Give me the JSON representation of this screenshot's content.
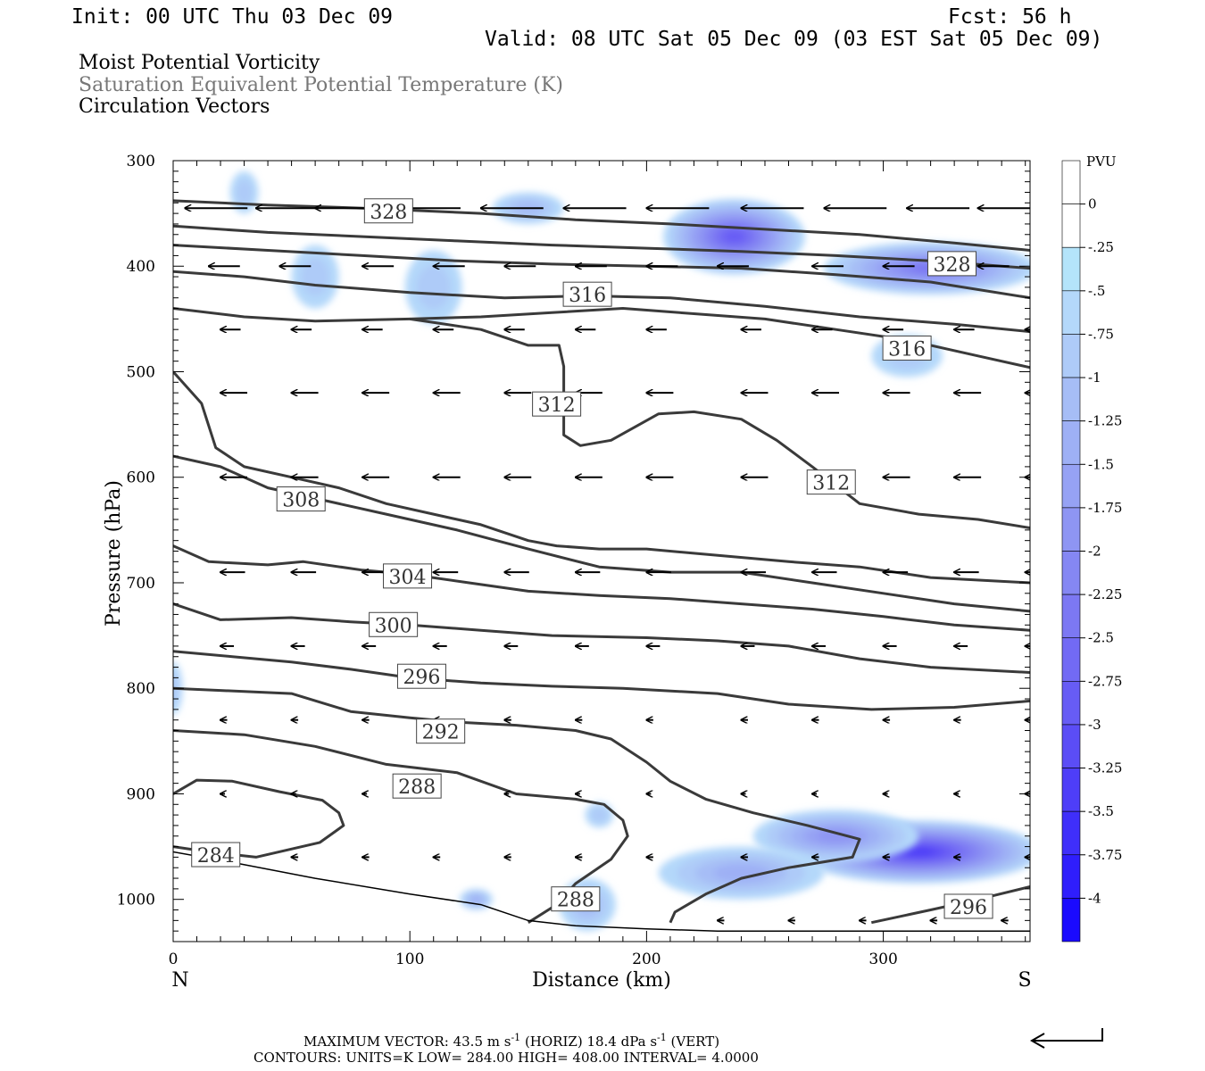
{
  "header": {
    "init": "Init: 00 UTC Thu 03 Dec 09",
    "fcst": "Fcst:   56 h",
    "valid": "Valid: 08 UTC Sat 05 Dec 09 (03 EST Sat 05 Dec 09)"
  },
  "fields": {
    "mpv": "Moist Potential Vorticity",
    "thetaes": "Saturation Equivalent Potential Temperature (K)",
    "vectors": "Circulation Vectors"
  },
  "chart_data": {
    "type": "cross-section",
    "xlabel": "Distance (km)",
    "ylabel": "Pressure (hPa)",
    "xlim": [
      0,
      362
    ],
    "ylim": [
      1040,
      300
    ],
    "x_ticks": [
      0,
      100,
      200,
      300
    ],
    "y_ticks": [
      300,
      400,
      500,
      600,
      700,
      800,
      900,
      1000
    ],
    "x_end_labels": {
      "left": "N",
      "right": "S"
    },
    "colorbar": {
      "title": "PVU",
      "labels": [
        "0",
        "-.25",
        "-.5",
        "-.75",
        "-1",
        "-1.25",
        "-1.5",
        "-1.75",
        "-2",
        "-2.25",
        "-2.5",
        "-2.75",
        "-3",
        "-3.25",
        "-3.5",
        "-3.75",
        "-4"
      ],
      "colors": [
        "#ffffff",
        "#ffffff",
        "#b4e4fa",
        "#b4d8fa",
        "#aecbf8",
        "#a6bdf6",
        "#9eb0f5",
        "#96a2f4",
        "#8e95f3",
        "#8587f3",
        "#7c78f3",
        "#726af4",
        "#675cf5",
        "#5b4df6",
        "#4e3ef8",
        "#3f2ffa",
        "#2f1efc",
        "#1a0afe"
      ]
    },
    "theta_contours": [
      {
        "label": "284",
        "label_at": [
          18,
          958
        ],
        "points": [
          [
            0,
            900
          ],
          [
            10,
            887
          ],
          [
            25,
            888
          ],
          [
            45,
            898
          ],
          [
            63,
            906
          ],
          [
            70,
            918
          ],
          [
            72,
            930
          ],
          [
            62,
            946
          ],
          [
            35,
            960
          ],
          [
            15,
            955
          ],
          [
            0,
            950
          ]
        ]
      },
      {
        "label": "288",
        "label_at": [
          103,
          893
        ],
        "points": [
          [
            0,
            840
          ],
          [
            30,
            844
          ],
          [
            60,
            855
          ],
          [
            90,
            872
          ],
          [
            120,
            880
          ],
          [
            145,
            900
          ],
          [
            170,
            905
          ],
          [
            182,
            910
          ],
          [
            190,
            925
          ],
          [
            192,
            940
          ],
          [
            185,
            962
          ],
          [
            170,
            985
          ],
          [
            162,
            1005
          ],
          [
            150,
            1022
          ]
        ]
      },
      {
        "label": "288",
        "label_at": [
          170,
          1000
        ],
        "points": []
      },
      {
        "label": "292",
        "label_at": [
          113,
          841
        ],
        "points": [
          [
            0,
            800
          ],
          [
            20,
            802
          ],
          [
            50,
            805
          ],
          [
            75,
            822
          ],
          [
            100,
            828
          ],
          [
            120,
            832
          ],
          [
            145,
            835
          ],
          [
            170,
            840
          ],
          [
            185,
            848
          ],
          [
            200,
            870
          ],
          [
            210,
            888
          ],
          [
            225,
            905
          ],
          [
            245,
            918
          ],
          [
            268,
            930
          ],
          [
            290,
            943
          ],
          [
            287,
            960
          ],
          [
            260,
            970
          ],
          [
            240,
            980
          ],
          [
            225,
            995
          ],
          [
            212,
            1012
          ],
          [
            210,
            1022
          ]
        ]
      },
      {
        "label": "296",
        "label_at": [
          105,
          789
        ],
        "points": [
          [
            0,
            765
          ],
          [
            25,
            770
          ],
          [
            50,
            775
          ],
          [
            75,
            782
          ],
          [
            100,
            790
          ],
          [
            130,
            795
          ],
          [
            160,
            798
          ],
          [
            190,
            800
          ],
          [
            230,
            805
          ],
          [
            260,
            815
          ],
          [
            295,
            820
          ],
          [
            330,
            818
          ],
          [
            362,
            812
          ]
        ]
      },
      {
        "label": "296",
        "label_at": [
          336,
          1007
        ],
        "points": [
          [
            295,
            1022
          ],
          [
            320,
            1010
          ],
          [
            340,
            1000
          ],
          [
            362,
            988
          ]
        ]
      },
      {
        "label": "300",
        "label_at": [
          93,
          740
        ],
        "points": [
          [
            0,
            720
          ],
          [
            20,
            735
          ],
          [
            50,
            733
          ],
          [
            75,
            737
          ],
          [
            100,
            740
          ],
          [
            130,
            745
          ],
          [
            160,
            750
          ],
          [
            200,
            752
          ],
          [
            230,
            755
          ],
          [
            260,
            760
          ],
          [
            290,
            772
          ],
          [
            320,
            780
          ],
          [
            362,
            785
          ]
        ]
      },
      {
        "label": "304",
        "label_at": [
          99,
          694
        ],
        "points": [
          [
            0,
            665
          ],
          [
            15,
            680
          ],
          [
            40,
            683
          ],
          [
            55,
            680
          ],
          [
            80,
            688
          ],
          [
            100,
            692
          ],
          [
            125,
            700
          ],
          [
            150,
            708
          ],
          [
            180,
            712
          ],
          [
            210,
            715
          ],
          [
            240,
            720
          ],
          [
            270,
            725
          ],
          [
            300,
            732
          ],
          [
            330,
            740
          ],
          [
            362,
            745
          ]
        ]
      },
      {
        "label": "308",
        "label_at": [
          54,
          621
        ],
        "points": [
          [
            0,
            580
          ],
          [
            20,
            590
          ],
          [
            40,
            610
          ],
          [
            60,
            620
          ],
          [
            90,
            635
          ],
          [
            120,
            650
          ],
          [
            150,
            668
          ],
          [
            180,
            685
          ],
          [
            210,
            690
          ],
          [
            240,
            690
          ],
          [
            270,
            700
          ],
          [
            300,
            710
          ],
          [
            330,
            720
          ],
          [
            362,
            727
          ]
        ]
      },
      {
        "label": "312",
        "label_at": [
          162,
          531
        ],
        "points": [
          [
            0,
            500
          ],
          [
            12,
            530
          ],
          [
            18,
            572
          ],
          [
            30,
            590
          ],
          [
            50,
            600
          ],
          [
            70,
            610
          ],
          [
            90,
            625
          ],
          [
            110,
            635
          ],
          [
            130,
            645
          ],
          [
            150,
            660
          ],
          [
            162,
            665
          ],
          [
            180,
            668
          ],
          [
            200,
            668
          ],
          [
            220,
            672
          ],
          [
            260,
            680
          ],
          [
            290,
            685
          ],
          [
            320,
            695
          ],
          [
            362,
            700
          ]
        ]
      },
      {
        "label": "312",
        "label_at": [
          278,
          605
        ],
        "points": [
          [
            100,
            450
          ],
          [
            130,
            460
          ],
          [
            150,
            475
          ],
          [
            163,
            475
          ],
          [
            165,
            495
          ],
          [
            165,
            560
          ],
          [
            172,
            570
          ],
          [
            185,
            565
          ],
          [
            205,
            540
          ],
          [
            220,
            538
          ],
          [
            240,
            545
          ],
          [
            255,
            565
          ],
          [
            270,
            590
          ],
          [
            290,
            625
          ],
          [
            315,
            635
          ],
          [
            340,
            640
          ],
          [
            362,
            648
          ]
        ]
      },
      {
        "label": "316",
        "label_at": [
          175,
          427
        ],
        "points": [
          [
            0,
            440
          ],
          [
            30,
            448
          ],
          [
            60,
            452
          ],
          [
            100,
            450
          ],
          [
            130,
            448
          ],
          [
            160,
            444
          ],
          [
            190,
            440
          ],
          [
            220,
            445
          ],
          [
            250,
            450
          ],
          [
            280,
            460
          ],
          [
            310,
            470
          ],
          [
            340,
            485
          ],
          [
            362,
            496
          ]
        ]
      },
      {
        "label": "316",
        "label_at": [
          310,
          478
        ],
        "points": [
          [
            0,
            405
          ],
          [
            30,
            410
          ],
          [
            60,
            418
          ],
          [
            100,
            425
          ],
          [
            140,
            430
          ],
          [
            175,
            428
          ],
          [
            210,
            430
          ],
          [
            250,
            438
          ],
          [
            290,
            448
          ],
          [
            330,
            455
          ],
          [
            362,
            462
          ]
        ]
      },
      {
        "label": "328",
        "label_at": [
          91,
          348
        ],
        "points": [
          [
            0,
            338
          ],
          [
            40,
            342
          ],
          [
            80,
            345
          ],
          [
            130,
            350
          ],
          [
            170,
            356
          ],
          [
            210,
            360
          ],
          [
            250,
            365
          ],
          [
            290,
            370
          ],
          [
            330,
            378
          ],
          [
            362,
            385
          ]
        ]
      },
      {
        "label": "328",
        "label_at": [
          329,
          398
        ],
        "points": [
          [
            0,
            362
          ],
          [
            40,
            368
          ],
          [
            80,
            372
          ],
          [
            120,
            376
          ],
          [
            160,
            380
          ],
          [
            200,
            383
          ],
          [
            240,
            386
          ],
          [
            280,
            390
          ],
          [
            320,
            395
          ],
          [
            362,
            402
          ]
        ]
      },
      {
        "label": "",
        "label_at": null,
        "points": [
          [
            0,
            380
          ],
          [
            40,
            385
          ],
          [
            80,
            390
          ],
          [
            120,
            395
          ],
          [
            160,
            398
          ],
          [
            200,
            400
          ],
          [
            240,
            402
          ],
          [
            280,
            408
          ],
          [
            320,
            415
          ],
          [
            362,
            430
          ]
        ]
      }
    ],
    "mpv_blobs": [
      {
        "x": 237,
        "p": 372,
        "rx": 30,
        "rp": 36,
        "pvu": -2.6
      },
      {
        "x": 320,
        "p": 402,
        "rx": 45,
        "rp": 25,
        "pvu": -2.0
      },
      {
        "x": 315,
        "p": 955,
        "rx": 52,
        "rp": 30,
        "pvu": -3.0
      },
      {
        "x": 280,
        "p": 940,
        "rx": 35,
        "rp": 25,
        "pvu": -1.6
      },
      {
        "x": 240,
        "p": 975,
        "rx": 35,
        "rp": 25,
        "pvu": -1.0
      },
      {
        "x": 150,
        "p": 345,
        "rx": 15,
        "rp": 15,
        "pvu": -0.7
      },
      {
        "x": 60,
        "p": 410,
        "rx": 10,
        "rp": 30,
        "pvu": -0.6
      },
      {
        "x": 110,
        "p": 420,
        "rx": 12,
        "rp": 35,
        "pvu": -0.6
      },
      {
        "x": 30,
        "p": 330,
        "rx": 6,
        "rp": 20,
        "pvu": -0.5
      },
      {
        "x": 310,
        "p": 485,
        "rx": 15,
        "rp": 20,
        "pvu": -0.6
      },
      {
        "x": 175,
        "p": 1005,
        "rx": 12,
        "rp": 25,
        "pvu": -0.7
      },
      {
        "x": 128,
        "p": 1000,
        "rx": 7,
        "rp": 10,
        "pvu": -1.0
      },
      {
        "x": 180,
        "p": 920,
        "rx": 6,
        "rp": 12,
        "pvu": -0.5
      },
      {
        "x": 0,
        "p": 800,
        "rx": 4,
        "rp": 25,
        "pvu": -0.5
      }
    ],
    "terrain_profile": [
      [
        0,
        955
      ],
      [
        25,
        965
      ],
      [
        60,
        980
      ],
      [
        100,
        995
      ],
      [
        130,
        1005
      ],
      [
        150,
        1020
      ],
      [
        170,
        1025
      ],
      [
        200,
        1028
      ],
      [
        230,
        1030
      ],
      [
        362,
        1030
      ]
    ],
    "vector_rows": [
      {
        "p": 345,
        "u": -28,
        "w": 0,
        "xs": [
          5,
          35,
          60,
          95,
          130,
          165,
          200,
          240,
          275,
          310,
          340
        ]
      },
      {
        "p": 400,
        "u": -14,
        "w": 0,
        "xs": [
          15,
          45,
          80,
          110,
          140,
          170,
          200,
          230,
          270,
          300,
          340
        ]
      },
      {
        "p": 460,
        "u": -9,
        "w": 0,
        "xs": [
          20,
          50,
          80,
          110,
          140,
          170,
          200,
          240,
          270,
          300,
          330,
          360
        ]
      },
      {
        "p": 520,
        "u": -12,
        "w": 0,
        "xs": [
          20,
          50,
          80,
          110,
          140,
          170,
          200,
          240,
          270,
          300,
          330,
          360
        ]
      },
      {
        "p": 600,
        "u": -12,
        "w": 0,
        "xs": [
          20,
          50,
          80,
          110,
          140,
          170,
          200,
          240,
          270,
          300,
          330,
          360
        ]
      },
      {
        "p": 690,
        "u": -11,
        "w": 0,
        "xs": [
          20,
          50,
          80,
          110,
          140,
          170,
          200,
          240,
          270,
          300,
          330,
          360
        ]
      },
      {
        "p": 760,
        "u": -6,
        "w": 0,
        "xs": [
          20,
          50,
          80,
          110,
          140,
          170,
          200,
          240,
          270,
          300,
          330,
          360
        ]
      },
      {
        "p": 830,
        "u": -3,
        "w": 0,
        "xs": [
          20,
          50,
          80,
          110,
          140,
          170,
          200,
          240,
          270,
          300,
          330,
          360
        ]
      },
      {
        "p": 900,
        "u": -2,
        "w": 0,
        "xs": [
          20,
          50,
          80,
          110,
          140,
          170,
          200,
          240,
          270,
          300,
          330,
          360
        ]
      },
      {
        "p": 960,
        "u": -3,
        "w": 0,
        "xs": [
          20,
          50,
          80,
          110,
          140,
          170,
          200,
          240,
          270,
          300,
          330,
          360
        ]
      },
      {
        "p": 1020,
        "u": -3,
        "w": 0,
        "xs": [
          230,
          260,
          290,
          320,
          350
        ]
      }
    ]
  },
  "footer": {
    "max_vector_a": "MAXIMUM VECTOR:  43.5 m s",
    "max_vector_exp1": "-1",
    "max_vector_b": " (HORIZ)          18.4 dPa s",
    "max_vector_exp2": "-1",
    "max_vector_c": " (VERT)",
    "contours_line": "CONTOURS:  UNITS=K  LOW=   284.00        HIGH=   408.00        INTERVAL=     4.0000"
  }
}
